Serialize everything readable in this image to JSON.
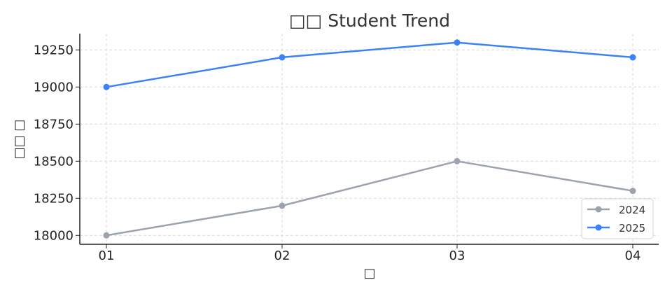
{
  "chart_data": {
    "type": "line",
    "title": "□□ Student Trend",
    "xlabel": "□",
    "ylabel": "□□ □",
    "categories": [
      "01",
      "02",
      "03",
      "04"
    ],
    "series": [
      {
        "name": "2024",
        "values": [
          18000,
          18200,
          18500,
          18300
        ],
        "color": "#9ca3af"
      },
      {
        "name": "2025",
        "values": [
          19000,
          19200,
          19300,
          19200
        ],
        "color": "#3b82f6"
      }
    ],
    "ylim": [
      17940,
      19360
    ],
    "y_ticks": [
      18000,
      18250,
      18500,
      18750,
      19000,
      19250
    ],
    "grid": true,
    "legend_position": "lower-right"
  }
}
